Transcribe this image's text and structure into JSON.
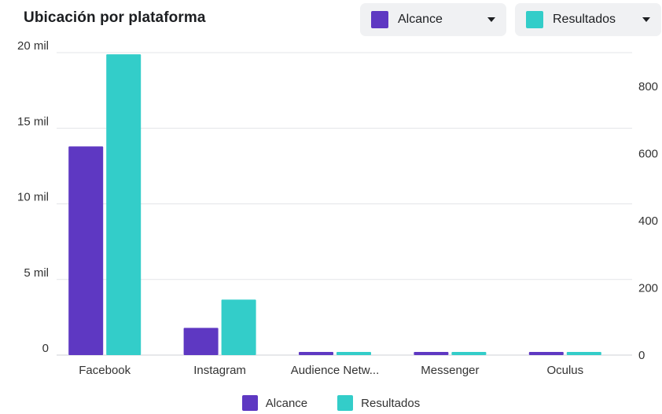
{
  "title": "Ubicación por plataforma",
  "selectors": [
    {
      "label": "Alcance",
      "color": "#5e38c2",
      "icon": "chevron-down-icon"
    },
    {
      "label": "Resultados",
      "color": "#33cdc9",
      "icon": "chevron-down-icon"
    }
  ],
  "chart_data": {
    "type": "bar",
    "title": "Ubicación por plataforma",
    "categories": [
      "Facebook",
      "Instagram",
      "Audience Netw...",
      "Messenger",
      "Oculus"
    ],
    "series": [
      {
        "name": "Alcance",
        "values": [
          13800,
          1800,
          0,
          0,
          0
        ],
        "color": "#5e38c2",
        "axis": "left"
      },
      {
        "name": "Resultados",
        "values": [
          895,
          165,
          0,
          0,
          0
        ],
        "color": "#33cdc9",
        "axis": "right"
      }
    ],
    "y_left": {
      "ylim": [
        0,
        20000
      ],
      "ticks": [
        0,
        5000,
        10000,
        15000,
        20000
      ],
      "tick_labels": [
        "0",
        "5 mil",
        "10 mil",
        "15 mil",
        "20 mil"
      ]
    },
    "y_right": {
      "ylim": [
        0,
        900
      ],
      "ticks": [
        0,
        200,
        400,
        600,
        800
      ],
      "tick_labels": [
        "0",
        "200",
        "400",
        "600",
        "800"
      ]
    },
    "grid": true,
    "legend": "bottom"
  }
}
